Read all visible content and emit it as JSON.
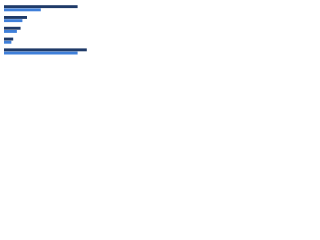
{
  "chart_data": {
    "type": "bar",
    "orientation": "horizontal",
    "categories": [
      null,
      null,
      null,
      null,
      null
    ],
    "series": [
      {
        "color": "#1f3a68",
        "values": [
          80,
          25,
          18,
          10,
          90
        ]
      },
      {
        "color": "#3f7fd9",
        "values": [
          40,
          20,
          14,
          8,
          80
        ]
      }
    ],
    "xlim": [
      0,
      100
    ],
    "grid": true
  }
}
